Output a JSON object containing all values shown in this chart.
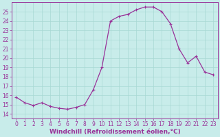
{
  "x": [
    0,
    1,
    2,
    3,
    4,
    5,
    6,
    7,
    8,
    9,
    10,
    11,
    12,
    13,
    14,
    15,
    16,
    17,
    18,
    19,
    20,
    21,
    22,
    23
  ],
  "y": [
    15.8,
    15.2,
    14.9,
    15.2,
    14.8,
    14.6,
    14.5,
    14.7,
    15.0,
    16.6,
    19.0,
    24.0,
    24.5,
    24.7,
    25.2,
    25.5,
    25.5,
    25.0,
    23.7,
    21.0,
    19.5,
    20.2,
    18.5,
    18.2
  ],
  "line_color": "#993399",
  "marker": "+",
  "marker_color": "#993399",
  "bg_color": "#c8ecea",
  "grid_color": "#a8d8d4",
  "xlabel": "Windchill (Refroidissement éolien,°C)",
  "ylim": [
    13.5,
    26.0
  ],
  "xlim": [
    -0.5,
    23.5
  ],
  "yticks": [
    14,
    15,
    16,
    17,
    18,
    19,
    20,
    21,
    22,
    23,
    24,
    25
  ],
  "xticks": [
    0,
    1,
    2,
    3,
    4,
    5,
    6,
    7,
    8,
    9,
    10,
    11,
    12,
    13,
    14,
    15,
    16,
    17,
    18,
    19,
    20,
    21,
    22,
    23
  ],
  "tick_color": "#993399",
  "label_color": "#993399",
  "spine_color": "#993399",
  "xlabel_fontsize": 6.5,
  "tick_fontsize": 5.5,
  "linewidth": 0.9,
  "markersize": 3.0
}
